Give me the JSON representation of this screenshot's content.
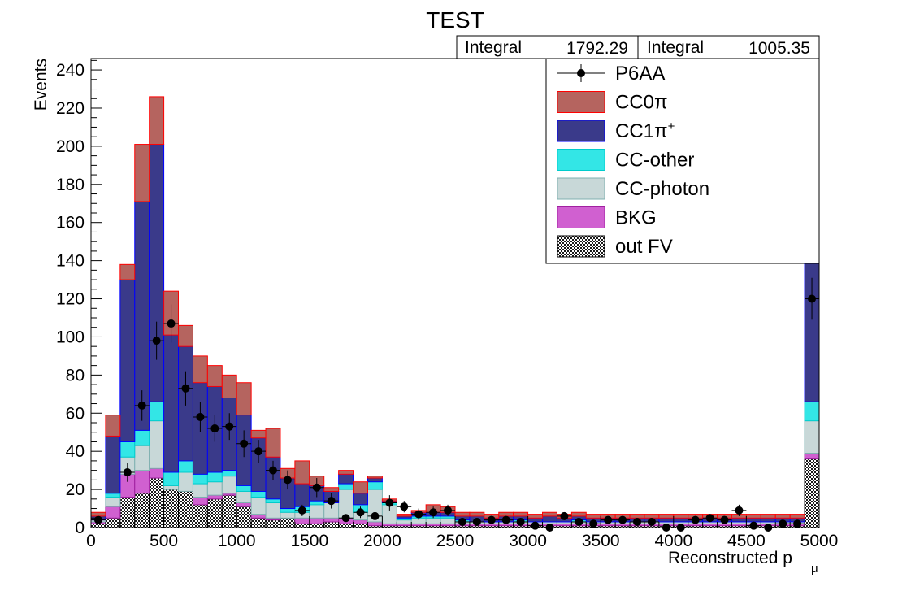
{
  "chart_data": {
    "type": "bar",
    "title": "TEST",
    "xlabel_main": "Reconstructed p",
    "xlabel_sub": "μ",
    "ylabel": "Events",
    "xlim": [
      0,
      5000
    ],
    "ylim": [
      0,
      246
    ],
    "bin_width": 100,
    "x_ticks": [
      "0",
      "500",
      "1000",
      "1500",
      "2000",
      "2500",
      "3000",
      "3500",
      "4000",
      "4500",
      "5000"
    ],
    "y_ticks": [
      "0",
      "20",
      "40",
      "60",
      "80",
      "100",
      "120",
      "140",
      "160",
      "180",
      "200",
      "220",
      "240"
    ],
    "stats": [
      {
        "label": "Integral",
        "value": "1792.29"
      },
      {
        "label": "Integral",
        "value": "1005.35"
      }
    ],
    "legend_position": "top-right",
    "legend": [
      {
        "key": "data",
        "label": "P6AA",
        "style": "marker"
      },
      {
        "key": "cc0pi",
        "label": "CC0π",
        "style": "fill",
        "fill": "#b5645f",
        "stroke": "#ff0000"
      },
      {
        "key": "cc1pi",
        "label": "CC1π",
        "sup": "+",
        "style": "fill",
        "fill": "#3a3a8a",
        "stroke": "#0000ff"
      },
      {
        "key": "ccother",
        "label": "CC-other",
        "style": "fill",
        "fill": "#33e6e6",
        "stroke": "#00cccc"
      },
      {
        "key": "ccphoton",
        "label": "CC-photon",
        "style": "fill",
        "fill": "#c8d8d8",
        "stroke": "#7fb0b0"
      },
      {
        "key": "bkg",
        "label": "BKG",
        "style": "fill",
        "fill": "#d060d0",
        "stroke": "#a020a0"
      },
      {
        "key": "outfv",
        "label": "out FV",
        "style": "fill",
        "fill": "#151515",
        "stroke": "#000000"
      }
    ],
    "series": [
      {
        "key": "outfv",
        "values": [
          2,
          5,
          16,
          18,
          26,
          20,
          19,
          12,
          15,
          17,
          11,
          5,
          4,
          5,
          2,
          2,
          3,
          2,
          2,
          1,
          1,
          1,
          1,
          1,
          1,
          1,
          1,
          1,
          1,
          1,
          1,
          1,
          1,
          1,
          1,
          1,
          1,
          1,
          1,
          1,
          1,
          1,
          1,
          1,
          1,
          1,
          1,
          1,
          1,
          36
        ]
      },
      {
        "key": "bkg",
        "values": [
          1,
          6,
          12,
          12,
          5,
          0,
          0,
          4,
          2,
          1,
          2,
          2,
          1,
          0,
          3,
          3,
          2,
          3,
          2,
          2,
          1,
          1,
          1,
          1,
          1,
          1,
          1,
          1,
          1,
          1,
          1,
          1,
          1,
          1,
          1,
          1,
          1,
          1,
          1,
          1,
          1,
          1,
          1,
          1,
          1,
          1,
          1,
          1,
          1,
          3
        ]
      },
      {
        "key": "ccphoton",
        "values": [
          1,
          5,
          9,
          13,
          25,
          2,
          10,
          7,
          7,
          9,
          6,
          9,
          8,
          3,
          3,
          7,
          8,
          15,
          4,
          17,
          10,
          2,
          3,
          3,
          3,
          1,
          1,
          1,
          1,
          1,
          1,
          1,
          1,
          1,
          1,
          1,
          1,
          1,
          1,
          1,
          1,
          1,
          1,
          1,
          1,
          1,
          1,
          1,
          1,
          17
        ]
      },
      {
        "key": "ccother",
        "values": [
          0,
          2,
          8,
          8,
          10,
          7,
          6,
          5,
          5,
          3,
          3,
          3,
          2,
          2,
          3,
          2,
          0,
          3,
          4,
          4,
          1,
          1,
          1,
          1,
          1,
          1,
          0,
          0,
          0,
          1,
          0,
          0,
          0,
          1,
          0,
          0,
          0,
          0,
          0,
          0,
          0,
          0,
          0,
          0,
          0,
          0,
          0,
          0,
          0,
          10
        ]
      },
      {
        "key": "cc1pi",
        "values": [
          2,
          30,
          85,
          120,
          135,
          72,
          60,
          48,
          45,
          38,
          37,
          28,
          22,
          16,
          12,
          8,
          6,
          5,
          6,
          2,
          1,
          1,
          2,
          2,
          2,
          2,
          3,
          2,
          3,
          2,
          2,
          3,
          2,
          2,
          2,
          2,
          2,
          2,
          2,
          2,
          2,
          2,
          2,
          2,
          2,
          2,
          2,
          2,
          2,
          125
        ]
      },
      {
        "key": "cc0pi",
        "values": [
          2,
          11,
          8,
          30,
          25,
          23,
          11,
          14,
          11,
          12,
          17,
          4,
          15,
          5,
          12,
          5,
          2,
          2,
          6,
          1,
          1,
          1,
          1,
          4,
          3,
          2,
          2,
          2,
          2,
          2,
          2,
          2,
          2,
          2,
          2,
          2,
          2,
          2,
          2,
          2,
          2,
          2,
          2,
          2,
          2,
          2,
          2,
          2,
          2,
          5
        ]
      }
    ],
    "data_points": {
      "x": [
        50,
        250,
        350,
        450,
        550,
        650,
        750,
        850,
        950,
        1050,
        1150,
        1250,
        1350,
        1450,
        1550,
        1650,
        1750,
        1850,
        1950,
        2050,
        2150,
        2250,
        2350,
        2450,
        2550,
        2650,
        2750,
        2850,
        2950,
        3050,
        3150,
        3250,
        3350,
        3450,
        3550,
        3650,
        3750,
        3850,
        3950,
        4050,
        4150,
        4250,
        4350,
        4450,
        4550,
        4650,
        4750,
        4850,
        4950
      ],
      "y": [
        4,
        29,
        64,
        98,
        107,
        73,
        58,
        52,
        53,
        44,
        40,
        30,
        25,
        9,
        21,
        14,
        5,
        8,
        6,
        13,
        11,
        7,
        8,
        9,
        3,
        3,
        4,
        4,
        3,
        1,
        0,
        6,
        3,
        2,
        4,
        4,
        3,
        3,
        0,
        0,
        4,
        5,
        4,
        9,
        1,
        0,
        2,
        2,
        120
      ],
      "err": [
        2,
        5,
        8,
        10,
        10,
        9,
        8,
        7,
        7,
        7,
        6,
        5,
        5,
        3,
        5,
        4,
        2,
        3,
        2,
        4,
        3,
        3,
        3,
        3,
        2,
        2,
        2,
        2,
        2,
        1,
        1,
        2,
        2,
        1,
        2,
        2,
        2,
        2,
        1,
        1,
        2,
        2,
        2,
        3,
        1,
        1,
        1,
        1,
        11
      ]
    }
  }
}
